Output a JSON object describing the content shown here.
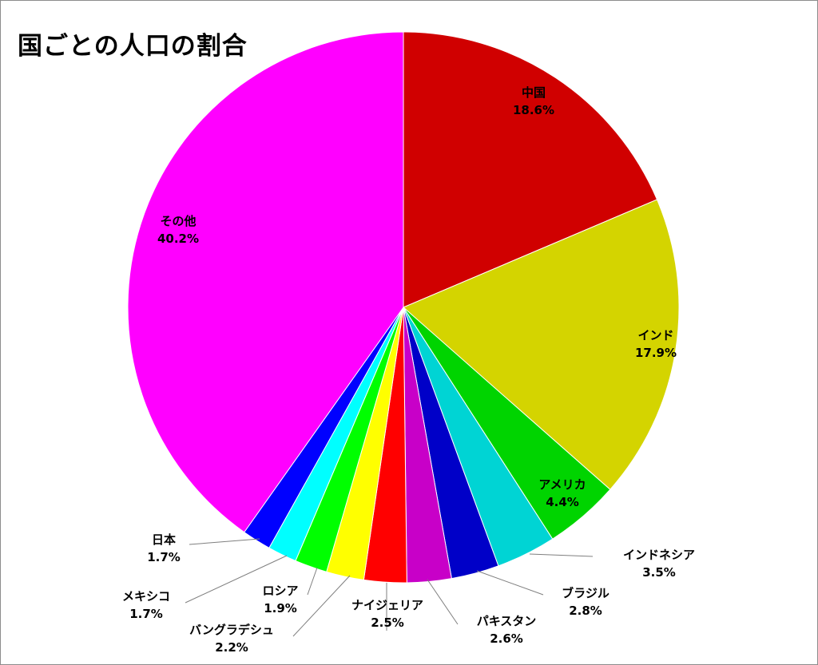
{
  "chart_data": {
    "type": "pie",
    "title": "国ごとの人口の割合",
    "slices": [
      {
        "label": "中国",
        "value": 18.6,
        "display": "18.6%",
        "color": "#d00000"
      },
      {
        "label": "インド",
        "value": 17.9,
        "display": "17.9%",
        "color": "#d4d400"
      },
      {
        "label": "アメリカ",
        "value": 4.4,
        "display": "4.4%",
        "color": "#00d400"
      },
      {
        "label": "インドネシア",
        "value": 3.5,
        "display": "3.5%",
        "color": "#00d4d4"
      },
      {
        "label": "ブラジル",
        "value": 2.8,
        "display": "2.8%",
        "color": "#0000c8"
      },
      {
        "label": "パキスタン",
        "value": 2.6,
        "display": "2.6%",
        "color": "#c800c8"
      },
      {
        "label": "ナイジェリア",
        "value": 2.5,
        "display": "2.5%",
        "color": "#ff0000"
      },
      {
        "label": "バングラデシュ",
        "value": 2.2,
        "display": "2.2%",
        "color": "#ffff00"
      },
      {
        "label": "ロシア",
        "value": 1.9,
        "display": "1.9%",
        "color": "#00ff00"
      },
      {
        "label": "メキシコ",
        "value": 1.7,
        "display": "1.7%",
        "color": "#00ffff"
      },
      {
        "label": "日本",
        "value": 1.7,
        "display": "1.7%",
        "color": "#0000ff"
      },
      {
        "label": "その他",
        "value": 40.2,
        "display": "40.2%",
        "color": "#ff00ff"
      }
    ]
  }
}
